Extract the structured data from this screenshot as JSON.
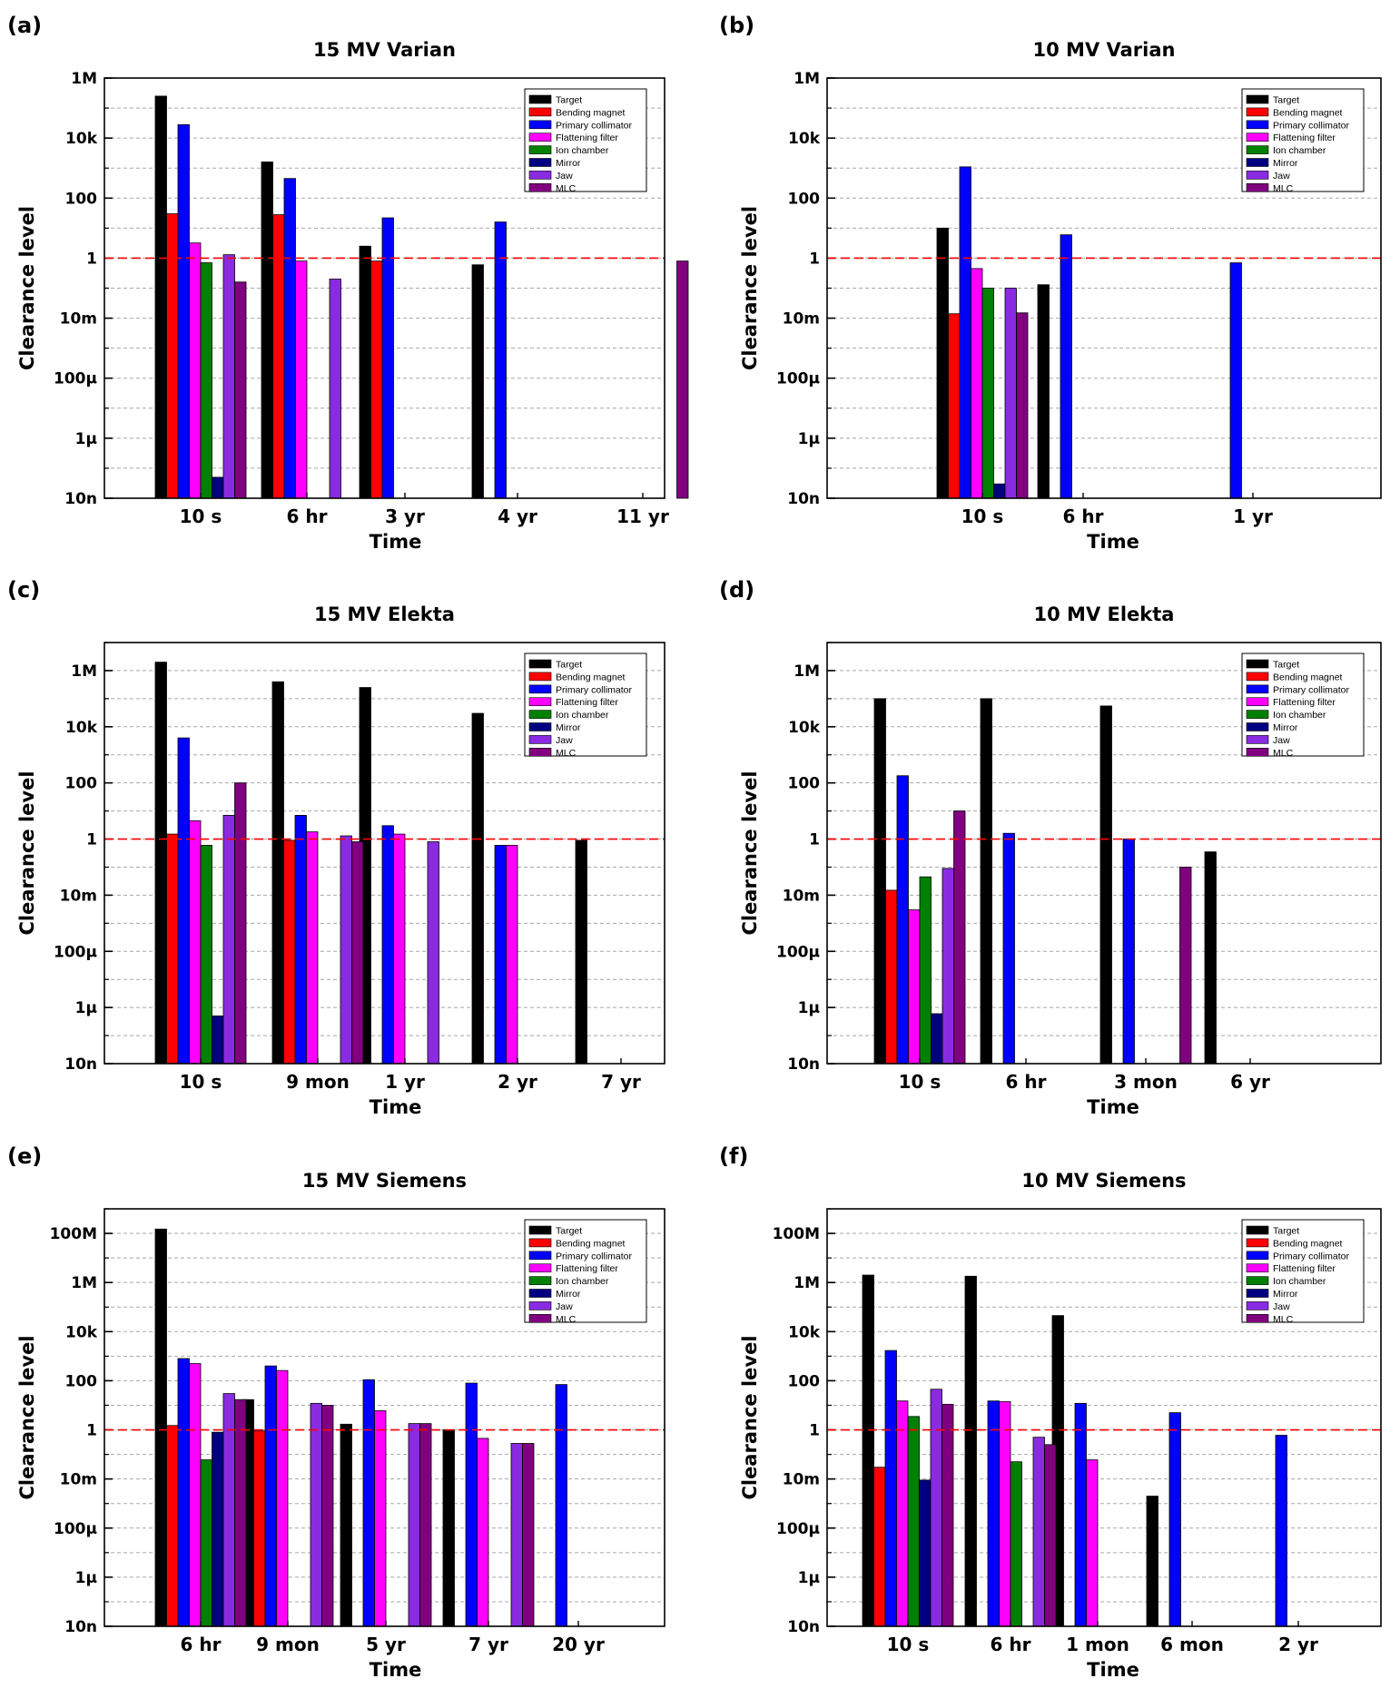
{
  "legend_labels": [
    "Target",
    "Bending magnet",
    "Primary collimator",
    "Flattening filter",
    "Ion chamber",
    "Mirror",
    "Jaw",
    "MLC"
  ],
  "colors": {
    "Target": "#000000",
    "Bending magnet": "#ff0000",
    "Primary collimator": "#0000ff",
    "Flattening filter": "#ff00ff",
    "Ion chamber": "#008000",
    "Mirror": "#000080",
    "Jaw": "#8a2be2",
    "MLC": "#800080",
    "threshold": "#ff0000"
  },
  "chart_data": [
    {
      "panel": "(a)",
      "type": "bar",
      "title": "15 MV Varian",
      "xlabel": "Time",
      "ylabel": "Clearance level",
      "y_scale": "log",
      "ylim": [
        1e-08,
        1000000.0
      ],
      "yticks": [
        1e-08,
        1e-06,
        0.0001,
        0.01,
        1,
        100,
        10000.0,
        1000000.0
      ],
      "ytick_labels": [
        "10n",
        "1µ",
        "100µ",
        "10m",
        "1",
        "100",
        "10k",
        "1M"
      ],
      "threshold": 1,
      "categories": [
        "10 s",
        "6 hr",
        "3 yr",
        "4 yr",
        "11 yr"
      ],
      "series": [
        {
          "name": "Target",
          "values": [
            250000,
            1600,
            2.5,
            0.6,
            null
          ]
        },
        {
          "name": "Bending magnet",
          "values": [
            30,
            28,
            0.8,
            null,
            null
          ]
        },
        {
          "name": "Primary collimator",
          "values": [
            28000,
            450,
            22,
            16,
            null
          ]
        },
        {
          "name": "Flattening filter",
          "values": [
            3.2,
            0.8,
            null,
            null,
            null
          ]
        },
        {
          "name": "Ion chamber",
          "values": [
            0.7,
            null,
            null,
            null,
            null
          ]
        },
        {
          "name": "Mirror",
          "values": [
            5e-08,
            null,
            null,
            null,
            null
          ]
        },
        {
          "name": "Jaw",
          "values": [
            1.3,
            0.2,
            null,
            null,
            null
          ]
        },
        {
          "name": "MLC",
          "values": [
            0.16,
            null,
            null,
            null,
            0.8
          ]
        }
      ]
    },
    {
      "panel": "(b)",
      "type": "bar",
      "title": "10 MV Varian",
      "xlabel": "Time",
      "ylabel": "Clearance level",
      "y_scale": "log",
      "ylim": [
        1e-08,
        1000000.0
      ],
      "yticks": [
        1e-08,
        1e-06,
        0.0001,
        0.01,
        1,
        100,
        10000.0,
        1000000.0
      ],
      "ytick_labels": [
        "10n",
        "1µ",
        "100µ",
        "10m",
        "1",
        "100",
        "10k",
        "1M"
      ],
      "threshold": 1,
      "categories": [
        "10 s",
        "6 hr",
        "1 yr"
      ],
      "series": [
        {
          "name": "Target",
          "values": [
            10,
            0.13,
            null
          ]
        },
        {
          "name": "Bending magnet",
          "values": [
            0.014,
            null,
            null
          ]
        },
        {
          "name": "Primary collimator",
          "values": [
            1100,
            6,
            0.7
          ]
        },
        {
          "name": "Flattening filter",
          "values": [
            0.45,
            null,
            null
          ]
        },
        {
          "name": "Ion chamber",
          "values": [
            0.1,
            null,
            null
          ]
        },
        {
          "name": "Mirror",
          "values": [
            3e-08,
            null,
            null
          ]
        },
        {
          "name": "Jaw",
          "values": [
            0.1,
            null,
            null
          ]
        },
        {
          "name": "MLC",
          "values": [
            0.015,
            null,
            null
          ]
        }
      ]
    },
    {
      "panel": "(c)",
      "type": "bar",
      "title": "15 MV Elekta",
      "xlabel": "Time",
      "ylabel": "Clearance level",
      "y_scale": "log",
      "ylim": [
        1e-08,
        10000000.0
      ],
      "yticks": [
        1e-08,
        1e-06,
        0.0001,
        0.01,
        1,
        100,
        10000.0,
        1000000.0
      ],
      "ytick_labels": [
        "10n",
        "1µ",
        "100µ",
        "10m",
        "1",
        "100",
        "10k",
        "1M"
      ],
      "threshold": 1,
      "categories": [
        "10 s",
        "9 mon",
        "1 yr",
        "2 yr",
        "7 yr"
      ],
      "series": [
        {
          "name": "Target",
          "values": [
            2000000,
            400000,
            250000,
            30000,
            0.9
          ]
        },
        {
          "name": "Bending magnet",
          "values": [
            1.5,
            0.9,
            null,
            null,
            null
          ]
        },
        {
          "name": "Primary collimator",
          "values": [
            4000,
            7,
            3,
            0.6,
            null
          ]
        },
        {
          "name": "Flattening filter",
          "values": [
            4.5,
            1.8,
            1.5,
            0.6,
            null
          ]
        },
        {
          "name": "Ion chamber",
          "values": [
            0.6,
            null,
            null,
            null,
            null
          ]
        },
        {
          "name": "Mirror",
          "values": [
            5e-07,
            null,
            null,
            null,
            null
          ]
        },
        {
          "name": "Jaw",
          "values": [
            7,
            1.3,
            0.8,
            null,
            null
          ]
        },
        {
          "name": "MLC",
          "values": [
            100,
            0.8,
            null,
            null,
            null
          ]
        }
      ]
    },
    {
      "panel": "(d)",
      "type": "bar",
      "title": "10 MV Elekta",
      "xlabel": "Time",
      "ylabel": "Clearance level",
      "y_scale": "log",
      "ylim": [
        1e-08,
        10000000.0
      ],
      "yticks": [
        1e-08,
        1e-06,
        0.0001,
        0.01,
        1,
        100,
        10000.0,
        1000000.0
      ],
      "ytick_labels": [
        "10n",
        "1µ",
        "100µ",
        "10m",
        "1",
        "100",
        "10k",
        "1M"
      ],
      "threshold": 1,
      "categories": [
        "10 s",
        "6 hr",
        "3 mon",
        "6 yr"
      ],
      "series": [
        {
          "name": "Target",
          "values": [
            100000,
            100000,
            55000,
            0.35
          ]
        },
        {
          "name": "Bending magnet",
          "values": [
            0.015,
            null,
            null,
            null
          ]
        },
        {
          "name": "Primary collimator",
          "values": [
            180,
            1.6,
            1,
            null
          ]
        },
        {
          "name": "Flattening filter",
          "values": [
            0.003,
            null,
            null,
            null
          ]
        },
        {
          "name": "Ion chamber",
          "values": [
            0.045,
            null,
            null,
            null
          ]
        },
        {
          "name": "Mirror",
          "values": [
            6e-07,
            null,
            null,
            null
          ]
        },
        {
          "name": "Jaw",
          "values": [
            0.09,
            null,
            null,
            null
          ]
        },
        {
          "name": "MLC",
          "values": [
            10,
            null,
            0.1,
            null
          ]
        }
      ]
    },
    {
      "panel": "(e)",
      "type": "bar",
      "title": "15 MV Siemens",
      "xlabel": "Time",
      "ylabel": "Clearance level",
      "y_scale": "log",
      "ylim": [
        1e-08,
        1000000000.0
      ],
      "yticks": [
        1e-08,
        1e-06,
        0.0001,
        0.01,
        1,
        100,
        10000.0,
        1000000.0,
        100000000.0
      ],
      "ytick_labels": [
        "10n",
        "1µ",
        "100µ",
        "10m",
        "1",
        "100",
        "10k",
        "1M",
        "100M"
      ],
      "threshold": 1,
      "categories": [
        "6 hr",
        "9 mon",
        "5 yr",
        "7 yr",
        "20 yr"
      ],
      "series": [
        {
          "name": "Target",
          "values": [
            150000000,
            17,
            1.7,
            1,
            null
          ]
        },
        {
          "name": "Bending magnet",
          "values": [
            1.5,
            0.9,
            null,
            null,
            null
          ]
        },
        {
          "name": "Primary collimator",
          "values": [
            800,
            400,
            110,
            80,
            70
          ]
        },
        {
          "name": "Flattening filter",
          "values": [
            500,
            260,
            6,
            0.45,
            null
          ]
        },
        {
          "name": "Ion chamber",
          "values": [
            0.06,
            null,
            null,
            null,
            null
          ]
        },
        {
          "name": "Mirror",
          "values": [
            0.8,
            null,
            null,
            null,
            null
          ]
        },
        {
          "name": "Jaw",
          "values": [
            30,
            12,
            1.8,
            0.28,
            null
          ]
        },
        {
          "name": "MLC",
          "values": [
            17,
            10,
            1.8,
            0.28,
            null
          ]
        }
      ]
    },
    {
      "panel": "(f)",
      "type": "bar",
      "title": "10 MV Siemens",
      "xlabel": "Time",
      "ylabel": "Clearance level",
      "y_scale": "log",
      "ylim": [
        1e-08,
        1000000000.0
      ],
      "yticks": [
        1e-08,
        1e-06,
        0.0001,
        0.01,
        1,
        100,
        10000.0,
        1000000.0,
        100000000.0
      ],
      "ytick_labels": [
        "10n",
        "1µ",
        "100µ",
        "10m",
        "1",
        "100",
        "10k",
        "1M",
        "100M"
      ],
      "threshold": 1,
      "categories": [
        "10 s",
        "6 hr",
        "1 mon",
        "6 mon",
        "2 yr"
      ],
      "series": [
        {
          "name": "Target",
          "values": [
            2000000,
            1800000,
            45000,
            0.002,
            null
          ]
        },
        {
          "name": "Bending magnet",
          "values": [
            0.03,
            null,
            null,
            null,
            null
          ]
        },
        {
          "name": "Primary collimator",
          "values": [
            1700,
            15,
            12,
            5,
            0.6
          ]
        },
        {
          "name": "Flattening filter",
          "values": [
            15,
            14,
            0.06,
            null,
            null
          ]
        },
        {
          "name": "Ion chamber",
          "values": [
            3.5,
            0.05,
            null,
            null,
            null
          ]
        },
        {
          "name": "Mirror",
          "values": [
            0.009,
            null,
            null,
            null,
            null
          ]
        },
        {
          "name": "Jaw",
          "values": [
            45,
            0.5,
            null,
            null,
            null
          ]
        },
        {
          "name": "MLC",
          "values": [
            11,
            0.25,
            null,
            null,
            null
          ]
        }
      ]
    }
  ]
}
